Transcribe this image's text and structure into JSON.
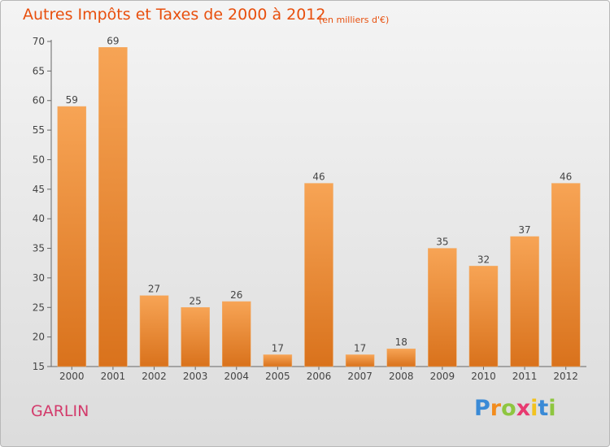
{
  "header": {
    "title": "Autres Impôts et Taxes de 2000 à 2012",
    "unit": "(en milliers d'€)"
  },
  "footer": {
    "commune": "GARLIN",
    "logo": {
      "letters": [
        "P",
        "r",
        "o",
        "x",
        "i",
        "t",
        "i"
      ],
      "colors": [
        "#3a8ad6",
        "#f28c1e",
        "#8ec640",
        "#e83a70",
        "#f2c21e",
        "#3a8ad6",
        "#8ec640"
      ]
    }
  },
  "colors": {
    "bar_light": "#f7a455",
    "bar_dark": "#d9721c",
    "title": "#e84f0d",
    "commune": "#d33a6b",
    "axis": "#666666"
  },
  "chart_data": {
    "type": "bar",
    "title": "Autres Impôts et Taxes de 2000 à 2012",
    "subtitle": "(en milliers d'€)",
    "xlabel": "",
    "ylabel": "",
    "categories": [
      "2000",
      "2001",
      "2002",
      "2003",
      "2004",
      "2005",
      "2006",
      "2007",
      "2008",
      "2009",
      "2010",
      "2011",
      "2012"
    ],
    "values": [
      59,
      69,
      27,
      25,
      26,
      17,
      46,
      17,
      18,
      35,
      32,
      37,
      46
    ],
    "ylim": [
      15,
      70
    ],
    "yticks": [
      15,
      20,
      25,
      30,
      35,
      40,
      45,
      50,
      55,
      60,
      65,
      70
    ],
    "grid": false,
    "legend": "none"
  }
}
